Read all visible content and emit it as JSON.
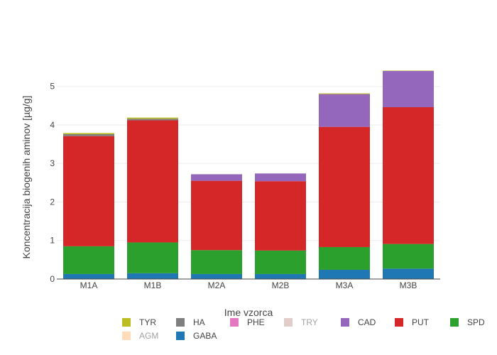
{
  "chart_data": {
    "type": "bar",
    "stacked": true,
    "title": "",
    "xlabel": "Ime vzorca",
    "ylabel": "Koncentracija biogenih aminov [µg/g]",
    "ylim": [
      0,
      5.4
    ],
    "yticks": [
      0,
      1,
      2,
      3,
      4,
      5
    ],
    "grid": true,
    "legend_position": "bottom",
    "categories": [
      "M1A",
      "M1B",
      "M2A",
      "M2B",
      "M3A",
      "M3B"
    ],
    "series": [
      {
        "name": "GABA",
        "color": "#1f77b4",
        "values": [
          0.13,
          0.15,
          0.13,
          0.13,
          0.24,
          0.27
        ],
        "visible": true
      },
      {
        "name": "AGM",
        "color": "#ffbb78",
        "values": [
          0,
          0,
          0,
          0,
          0,
          0
        ],
        "visible": false
      },
      {
        "name": "SPD",
        "color": "#2ca02c",
        "values": [
          0.72,
          0.8,
          0.62,
          0.61,
          0.59,
          0.64
        ],
        "visible": true
      },
      {
        "name": "PUT",
        "color": "#d62728",
        "values": [
          2.86,
          3.17,
          1.8,
          1.8,
          3.12,
          3.55
        ],
        "visible": true
      },
      {
        "name": "CAD",
        "color": "#9467bd",
        "values": [
          0.0,
          0.0,
          0.17,
          0.2,
          0.85,
          0.94
        ],
        "visible": true
      },
      {
        "name": "TRY",
        "color": "#c49c94",
        "values": [
          0,
          0,
          0,
          0,
          0,
          0
        ],
        "visible": false
      },
      {
        "name": "PHE",
        "color": "#e377c2",
        "values": [
          0,
          0,
          0,
          0,
          0,
          0
        ],
        "visible": true
      },
      {
        "name": "HA",
        "color": "#7f7f7f",
        "values": [
          0.05,
          0.04,
          0,
          0,
          0,
          0
        ],
        "visible": true
      },
      {
        "name": "TYR",
        "color": "#bcbd22",
        "values": [
          0.03,
          0.03,
          0,
          0,
          0.02,
          0.01
        ],
        "visible": true
      }
    ],
    "legend_order": [
      [
        "TYR",
        "HA",
        "PHE",
        "TRY",
        "CAD",
        "PUT",
        "SPD"
      ],
      [
        "AGM",
        "GABA"
      ]
    ]
  }
}
